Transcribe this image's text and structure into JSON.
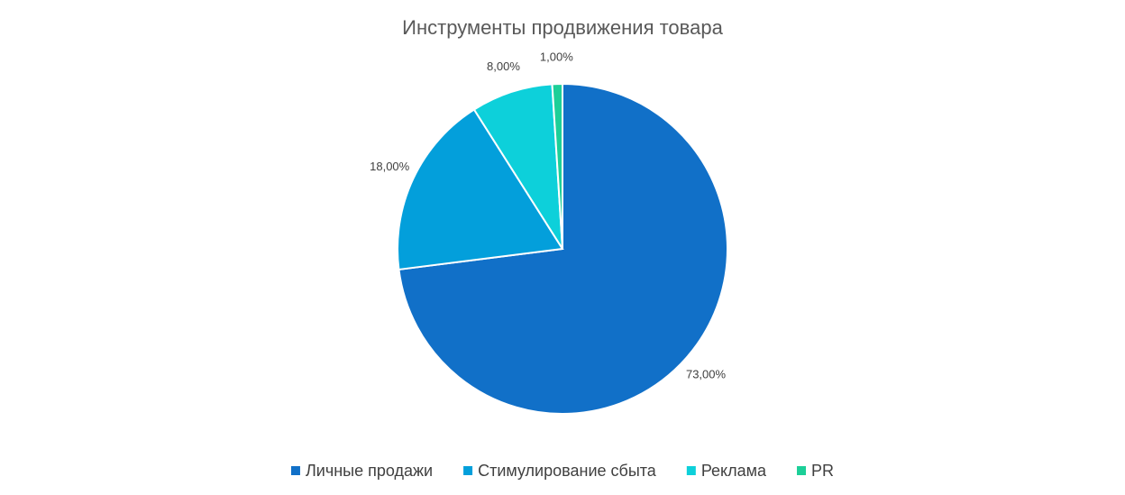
{
  "chart_data": {
    "type": "pie",
    "title": "Инструменты продвижения товара",
    "categories": [
      "Личные продажи",
      "Стимулирование сбыта",
      "Реклама",
      "PR"
    ],
    "values": [
      73,
      18,
      8,
      1
    ],
    "value_labels": [
      "73,00%",
      "18,00%",
      "8,00%",
      "1,00%"
    ],
    "colors": [
      "#1170c8",
      "#039fdb",
      "#0dd0da",
      "#1ccf98"
    ],
    "legend": "bottom"
  }
}
